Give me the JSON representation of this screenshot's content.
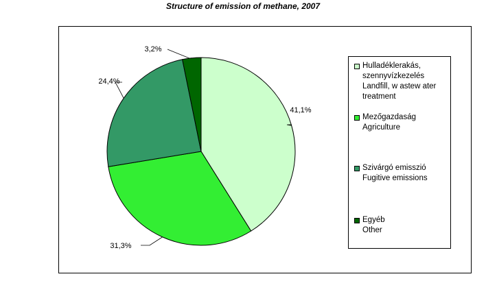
{
  "chart_data": {
    "type": "pie",
    "title": "Structure of emission of methane, 2007",
    "slices": [
      {
        "name": "Hulladéklerakás, szennyvízkezelés Landfill, w astew ater treatment",
        "value": 41.1,
        "label": "41,1%",
        "color": "#ccffcc"
      },
      {
        "name": "Mezőgazdaság Agriculture",
        "value": 31.3,
        "label": "31,3%",
        "color": "#33ee33"
      },
      {
        "name": "Szivárgó emisszió Fugitive emissions",
        "value": 24.4,
        "label": "24,4%",
        "color": "#339966"
      },
      {
        "name": "Egyéb Other",
        "value": 3.2,
        "label": "3,2%",
        "color": "#006600"
      }
    ],
    "legend": {
      "placement": "right",
      "entries": [
        "Hulladéklerakás,\nszennyvízkezelés\nLandfill, w astew ater\ntreatment",
        "Mezőgazdaság\nAgriculture",
        "Szivárgó emisszió\nFugitive emissions",
        "Egyéb\nOther"
      ]
    }
  }
}
